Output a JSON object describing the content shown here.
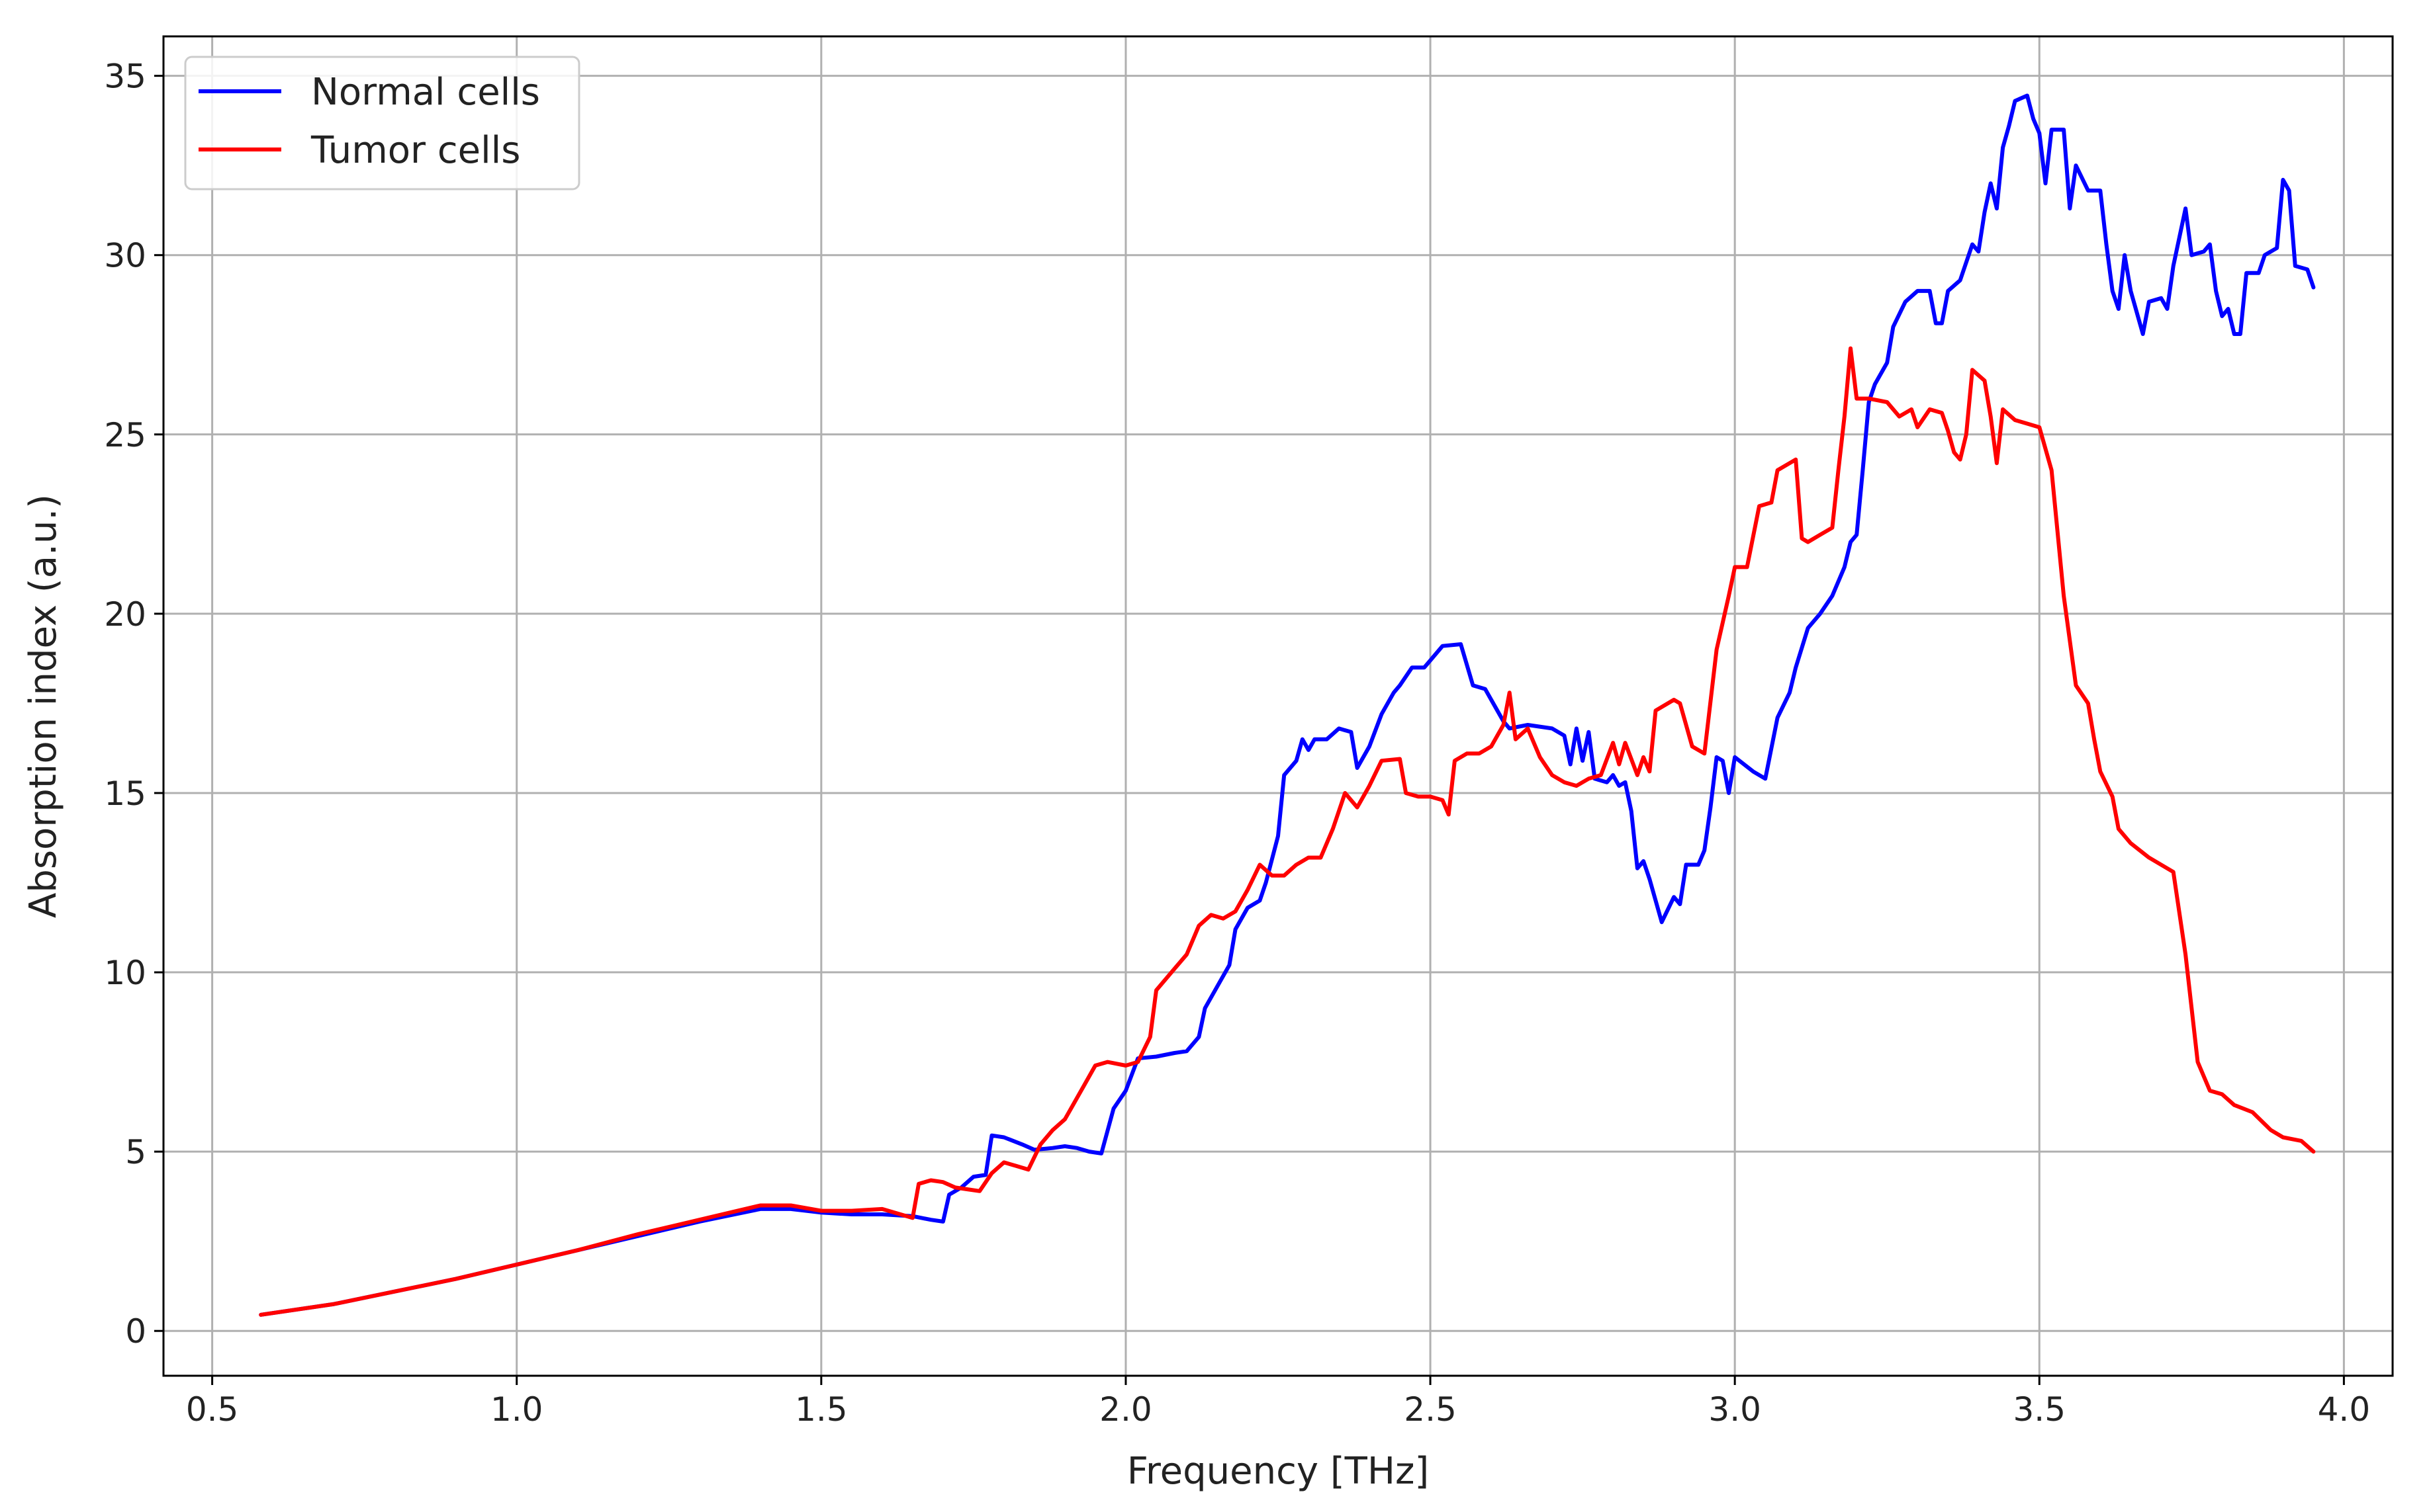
{
  "chart_data": {
    "type": "line",
    "title": "",
    "xlabel": "Frequency [THz]",
    "ylabel": "Absorption index (a.u.)",
    "xlim": [
      0.42,
      4.08
    ],
    "ylim": [
      -1.25,
      36.1
    ],
    "xticks": [
      0.5,
      1.0,
      1.5,
      2.0,
      2.5,
      3.0,
      3.5,
      4.0
    ],
    "xtick_labels": [
      "0.5",
      "1.0",
      "1.5",
      "2.0",
      "2.5",
      "3.0",
      "3.5",
      "4.0"
    ],
    "yticks": [
      0,
      5,
      10,
      15,
      20,
      25,
      30,
      35
    ],
    "ytick_labels": [
      "0",
      "5",
      "10",
      "15",
      "20",
      "25",
      "30",
      "35"
    ],
    "grid": true,
    "legend_position": "top-left",
    "series": [
      {
        "name": "Normal cells",
        "color": "#0000ff",
        "points": [
          [
            0.58,
            0.45
          ],
          [
            0.7,
            0.75
          ],
          [
            0.8,
            1.1
          ],
          [
            0.9,
            1.45
          ],
          [
            1.0,
            1.85
          ],
          [
            1.1,
            2.25
          ],
          [
            1.2,
            2.65
          ],
          [
            1.3,
            3.05
          ],
          [
            1.4,
            3.4
          ],
          [
            1.45,
            3.4
          ],
          [
            1.5,
            3.3
          ],
          [
            1.55,
            3.25
          ],
          [
            1.6,
            3.25
          ],
          [
            1.65,
            3.2
          ],
          [
            1.68,
            3.1
          ],
          [
            1.7,
            3.05
          ],
          [
            1.71,
            3.8
          ],
          [
            1.73,
            4.0
          ],
          [
            1.75,
            4.3
          ],
          [
            1.77,
            4.35
          ],
          [
            1.78,
            5.45
          ],
          [
            1.8,
            5.4
          ],
          [
            1.83,
            5.2
          ],
          [
            1.85,
            5.05
          ],
          [
            1.88,
            5.1
          ],
          [
            1.9,
            5.15
          ],
          [
            1.92,
            5.1
          ],
          [
            1.94,
            5.0
          ],
          [
            1.96,
            4.95
          ],
          [
            1.98,
            6.2
          ],
          [
            2.0,
            6.7
          ],
          [
            2.02,
            7.6
          ],
          [
            2.05,
            7.65
          ],
          [
            2.08,
            7.75
          ],
          [
            2.1,
            7.8
          ],
          [
            2.12,
            8.2
          ],
          [
            2.13,
            9.0
          ],
          [
            2.15,
            9.6
          ],
          [
            2.17,
            10.2
          ],
          [
            2.18,
            11.2
          ],
          [
            2.2,
            11.8
          ],
          [
            2.22,
            12.0
          ],
          [
            2.23,
            12.5
          ],
          [
            2.25,
            13.8
          ],
          [
            2.26,
            15.5
          ],
          [
            2.28,
            15.9
          ],
          [
            2.29,
            16.5
          ],
          [
            2.3,
            16.2
          ],
          [
            2.31,
            16.5
          ],
          [
            2.33,
            16.5
          ],
          [
            2.35,
            16.8
          ],
          [
            2.37,
            16.7
          ],
          [
            2.38,
            15.7
          ],
          [
            2.4,
            16.3
          ],
          [
            2.42,
            17.2
          ],
          [
            2.44,
            17.8
          ],
          [
            2.45,
            18.0
          ],
          [
            2.47,
            18.5
          ],
          [
            2.49,
            18.5
          ],
          [
            2.5,
            18.7
          ],
          [
            2.52,
            19.1
          ],
          [
            2.55,
            19.15
          ],
          [
            2.57,
            18.0
          ],
          [
            2.59,
            17.9
          ],
          [
            2.6,
            17.6
          ],
          [
            2.62,
            17.0
          ],
          [
            2.63,
            16.8
          ],
          [
            2.66,
            16.9
          ],
          [
            2.7,
            16.8
          ],
          [
            2.72,
            16.6
          ],
          [
            2.73,
            15.8
          ],
          [
            2.74,
            16.8
          ],
          [
            2.75,
            15.9
          ],
          [
            2.76,
            16.7
          ],
          [
            2.77,
            15.4
          ],
          [
            2.79,
            15.3
          ],
          [
            2.8,
            15.5
          ],
          [
            2.81,
            15.2
          ],
          [
            2.82,
            15.3
          ],
          [
            2.83,
            14.5
          ],
          [
            2.84,
            12.9
          ],
          [
            2.85,
            13.1
          ],
          [
            2.86,
            12.6
          ],
          [
            2.87,
            12.0
          ],
          [
            2.88,
            11.4
          ],
          [
            2.9,
            12.1
          ],
          [
            2.91,
            11.9
          ],
          [
            2.92,
            13.0
          ],
          [
            2.94,
            13.0
          ],
          [
            2.95,
            13.4
          ],
          [
            2.96,
            14.6
          ],
          [
            2.97,
            16.0
          ],
          [
            2.98,
            15.9
          ],
          [
            2.99,
            15.0
          ],
          [
            3.0,
            16.0
          ],
          [
            3.03,
            15.6
          ],
          [
            3.05,
            15.4
          ],
          [
            3.07,
            17.1
          ],
          [
            3.09,
            17.8
          ],
          [
            3.1,
            18.5
          ],
          [
            3.12,
            19.6
          ],
          [
            3.14,
            20.0
          ],
          [
            3.16,
            20.5
          ],
          [
            3.18,
            21.3
          ],
          [
            3.19,
            22.0
          ],
          [
            3.2,
            22.2
          ],
          [
            3.21,
            24.0
          ],
          [
            3.22,
            25.9
          ],
          [
            3.23,
            26.4
          ],
          [
            3.25,
            27.0
          ],
          [
            3.26,
            28.0
          ],
          [
            3.28,
            28.7
          ],
          [
            3.3,
            29.0
          ],
          [
            3.32,
            29.0
          ],
          [
            3.33,
            28.1
          ],
          [
            3.34,
            28.1
          ],
          [
            3.35,
            29.0
          ],
          [
            3.37,
            29.3
          ],
          [
            3.39,
            30.3
          ],
          [
            3.4,
            30.1
          ],
          [
            3.41,
            31.2
          ],
          [
            3.42,
            32.0
          ],
          [
            3.43,
            31.3
          ],
          [
            3.44,
            33.0
          ],
          [
            3.45,
            33.6
          ],
          [
            3.46,
            34.3
          ],
          [
            3.48,
            34.45
          ],
          [
            3.49,
            33.8
          ],
          [
            3.5,
            33.4
          ],
          [
            3.51,
            32.0
          ],
          [
            3.52,
            33.5
          ],
          [
            3.54,
            33.5
          ],
          [
            3.55,
            31.3
          ],
          [
            3.56,
            32.5
          ],
          [
            3.58,
            31.8
          ],
          [
            3.6,
            31.8
          ],
          [
            3.61,
            30.3
          ],
          [
            3.62,
            29.0
          ],
          [
            3.63,
            28.5
          ],
          [
            3.64,
            30.0
          ],
          [
            3.65,
            29.0
          ],
          [
            3.67,
            27.8
          ],
          [
            3.68,
            28.7
          ],
          [
            3.7,
            28.8
          ],
          [
            3.71,
            28.5
          ],
          [
            3.72,
            29.7
          ],
          [
            3.74,
            31.3
          ],
          [
            3.75,
            30.0
          ],
          [
            3.77,
            30.1
          ],
          [
            3.78,
            30.3
          ],
          [
            3.79,
            29.0
          ],
          [
            3.8,
            28.3
          ],
          [
            3.81,
            28.5
          ],
          [
            3.82,
            27.8
          ],
          [
            3.83,
            27.8
          ],
          [
            3.84,
            29.5
          ],
          [
            3.86,
            29.5
          ],
          [
            3.87,
            30.0
          ],
          [
            3.89,
            30.2
          ],
          [
            3.9,
            32.1
          ],
          [
            3.91,
            31.8
          ],
          [
            3.92,
            29.7
          ],
          [
            3.94,
            29.6
          ],
          [
            3.95,
            29.1
          ]
        ]
      },
      {
        "name": "Tumor cells",
        "color": "#ff0000",
        "points": [
          [
            0.58,
            0.45
          ],
          [
            0.7,
            0.75
          ],
          [
            0.8,
            1.1
          ],
          [
            0.9,
            1.45
          ],
          [
            1.0,
            1.85
          ],
          [
            1.1,
            2.25
          ],
          [
            1.2,
            2.7
          ],
          [
            1.3,
            3.1
          ],
          [
            1.4,
            3.5
          ],
          [
            1.45,
            3.5
          ],
          [
            1.5,
            3.35
          ],
          [
            1.55,
            3.35
          ],
          [
            1.6,
            3.4
          ],
          [
            1.65,
            3.15
          ],
          [
            1.66,
            4.1
          ],
          [
            1.68,
            4.2
          ],
          [
            1.7,
            4.15
          ],
          [
            1.72,
            4.0
          ],
          [
            1.74,
            3.95
          ],
          [
            1.76,
            3.9
          ],
          [
            1.78,
            4.4
          ],
          [
            1.8,
            4.7
          ],
          [
            1.82,
            4.6
          ],
          [
            1.84,
            4.5
          ],
          [
            1.86,
            5.2
          ],
          [
            1.88,
            5.6
          ],
          [
            1.9,
            5.9
          ],
          [
            1.91,
            6.2
          ],
          [
            1.93,
            6.8
          ],
          [
            1.95,
            7.4
          ],
          [
            1.97,
            7.5
          ],
          [
            2.0,
            7.4
          ],
          [
            2.02,
            7.5
          ],
          [
            2.04,
            8.2
          ],
          [
            2.05,
            9.5
          ],
          [
            2.08,
            10.1
          ],
          [
            2.1,
            10.5
          ],
          [
            2.12,
            11.3
          ],
          [
            2.14,
            11.6
          ],
          [
            2.16,
            11.5
          ],
          [
            2.18,
            11.7
          ],
          [
            2.2,
            12.3
          ],
          [
            2.22,
            13.0
          ],
          [
            2.24,
            12.7
          ],
          [
            2.26,
            12.7
          ],
          [
            2.28,
            13.0
          ],
          [
            2.3,
            13.2
          ],
          [
            2.32,
            13.2
          ],
          [
            2.34,
            14.0
          ],
          [
            2.36,
            15.0
          ],
          [
            2.38,
            14.6
          ],
          [
            2.4,
            15.2
          ],
          [
            2.42,
            15.9
          ],
          [
            2.45,
            15.95
          ],
          [
            2.46,
            15.0
          ],
          [
            2.48,
            14.9
          ],
          [
            2.5,
            14.9
          ],
          [
            2.52,
            14.8
          ],
          [
            2.53,
            14.4
          ],
          [
            2.54,
            15.9
          ],
          [
            2.56,
            16.1
          ],
          [
            2.58,
            16.1
          ],
          [
            2.6,
            16.3
          ],
          [
            2.62,
            16.9
          ],
          [
            2.63,
            17.8
          ],
          [
            2.64,
            16.5
          ],
          [
            2.66,
            16.8
          ],
          [
            2.68,
            16.0
          ],
          [
            2.7,
            15.5
          ],
          [
            2.72,
            15.3
          ],
          [
            2.74,
            15.2
          ],
          [
            2.76,
            15.4
          ],
          [
            2.78,
            15.5
          ],
          [
            2.8,
            16.4
          ],
          [
            2.81,
            15.8
          ],
          [
            2.82,
            16.4
          ],
          [
            2.84,
            15.5
          ],
          [
            2.85,
            16.0
          ],
          [
            2.86,
            15.6
          ],
          [
            2.87,
            17.3
          ],
          [
            2.9,
            17.6
          ],
          [
            2.91,
            17.5
          ],
          [
            2.93,
            16.3
          ],
          [
            2.95,
            16.1
          ],
          [
            2.97,
            19.0
          ],
          [
            2.99,
            20.5
          ],
          [
            3.0,
            21.3
          ],
          [
            3.02,
            21.3
          ],
          [
            3.04,
            23.0
          ],
          [
            3.06,
            23.1
          ],
          [
            3.07,
            24.0
          ],
          [
            3.09,
            24.2
          ],
          [
            3.1,
            24.3
          ],
          [
            3.11,
            22.1
          ],
          [
            3.12,
            22.0
          ],
          [
            3.14,
            22.2
          ],
          [
            3.16,
            22.4
          ],
          [
            3.17,
            24.0
          ],
          [
            3.18,
            25.5
          ],
          [
            3.19,
            27.4
          ],
          [
            3.2,
            26.0
          ],
          [
            3.22,
            26.0
          ],
          [
            3.25,
            25.9
          ],
          [
            3.27,
            25.5
          ],
          [
            3.29,
            25.7
          ],
          [
            3.3,
            25.2
          ],
          [
            3.32,
            25.7
          ],
          [
            3.34,
            25.6
          ],
          [
            3.35,
            25.1
          ],
          [
            3.36,
            24.5
          ],
          [
            3.37,
            24.3
          ],
          [
            3.38,
            25.0
          ],
          [
            3.39,
            26.8
          ],
          [
            3.41,
            26.5
          ],
          [
            3.42,
            25.5
          ],
          [
            3.43,
            24.2
          ],
          [
            3.44,
            25.7
          ],
          [
            3.46,
            25.4
          ],
          [
            3.48,
            25.3
          ],
          [
            3.5,
            25.2
          ],
          [
            3.52,
            24.0
          ],
          [
            3.54,
            20.5
          ],
          [
            3.56,
            18.0
          ],
          [
            3.58,
            17.5
          ],
          [
            3.59,
            16.5
          ],
          [
            3.6,
            15.6
          ],
          [
            3.62,
            14.9
          ],
          [
            3.63,
            14.0
          ],
          [
            3.65,
            13.6
          ],
          [
            3.68,
            13.2
          ],
          [
            3.72,
            12.8
          ],
          [
            3.74,
            10.5
          ],
          [
            3.76,
            7.5
          ],
          [
            3.78,
            6.7
          ],
          [
            3.8,
            6.6
          ],
          [
            3.82,
            6.3
          ],
          [
            3.85,
            6.1
          ],
          [
            3.88,
            5.6
          ],
          [
            3.9,
            5.4
          ],
          [
            3.93,
            5.3
          ],
          [
            3.95,
            5.0
          ]
        ]
      }
    ]
  }
}
